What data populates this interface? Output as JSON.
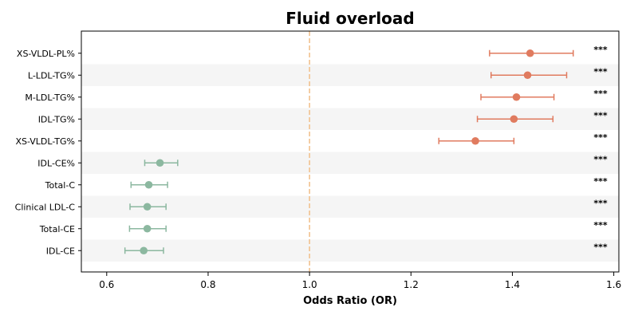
{
  "chart_data": {
    "type": "scatter",
    "subtype": "forest-plot",
    "title": "Fluid overload",
    "xlabel": "Odds Ratio (OR)",
    "xlim": [
      0.55,
      1.61
    ],
    "xticks": [
      0.6,
      0.8,
      1.0,
      1.2,
      1.4,
      1.6
    ],
    "xtick_labels": [
      "0.6",
      "0.8",
      "1.0",
      "1.2",
      "1.4",
      "1.6"
    ],
    "reference_line": 1.0,
    "reference_line_style": "dashed",
    "reference_line_color": "#f2c28f",
    "alternating_row_shading": true,
    "colors": {
      "increased_risk": "#e07b5f",
      "decreased_risk": "#8cb8a0",
      "shade": "#f5f5f5"
    },
    "rows": [
      {
        "label": "XS-VLDL-PL%",
        "or": 1.435,
        "ci_low": 1.355,
        "ci_high": 1.52,
        "sig": "***"
      },
      {
        "label": "L-LDL-TG%",
        "or": 1.43,
        "ci_low": 1.358,
        "ci_high": 1.507,
        "sig": "***"
      },
      {
        "label": "M-LDL-TG%",
        "or": 1.408,
        "ci_low": 1.338,
        "ci_high": 1.482,
        "sig": "***"
      },
      {
        "label": "IDL-TG%",
        "or": 1.403,
        "ci_low": 1.331,
        "ci_high": 1.48,
        "sig": "***"
      },
      {
        "label": "XS-VLDL-TG%",
        "or": 1.327,
        "ci_low": 1.255,
        "ci_high": 1.403,
        "sig": "***"
      },
      {
        "label": "IDL-CE%",
        "or": 0.705,
        "ci_low": 0.675,
        "ci_high": 0.74,
        "sig": "***"
      },
      {
        "label": "Total-C",
        "or": 0.683,
        "ci_low": 0.648,
        "ci_high": 0.72,
        "sig": "***"
      },
      {
        "label": "Clinical LDL-C",
        "or": 0.68,
        "ci_low": 0.646,
        "ci_high": 0.717,
        "sig": "***"
      },
      {
        "label": "Total-CE",
        "or": 0.68,
        "ci_low": 0.645,
        "ci_high": 0.717,
        "sig": "***"
      },
      {
        "label": "IDL-CE",
        "or": 0.673,
        "ci_low": 0.636,
        "ci_high": 0.712,
        "sig": "***"
      }
    ]
  }
}
